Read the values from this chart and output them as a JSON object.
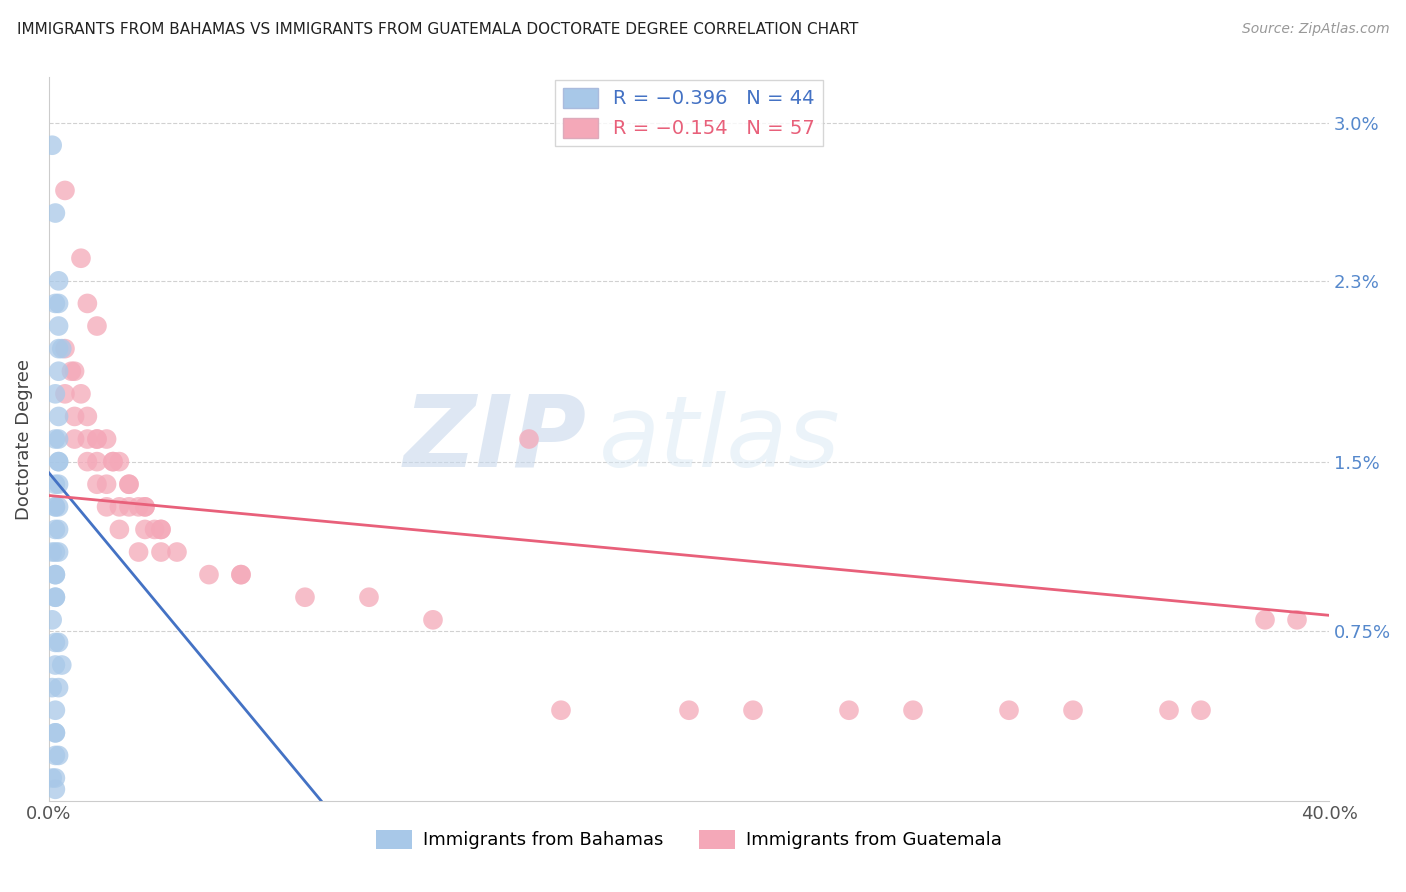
{
  "title": "IMMIGRANTS FROM BAHAMAS VS IMMIGRANTS FROM GUATEMALA DOCTORATE DEGREE CORRELATION CHART",
  "source": "Source: ZipAtlas.com",
  "ylabel": "Doctorate Degree",
  "ytick_labels": [
    "0.75%",
    "1.5%",
    "2.3%",
    "3.0%"
  ],
  "ytick_values": [
    0.0075,
    0.015,
    0.023,
    0.03
  ],
  "xlim": [
    0.0,
    0.4
  ],
  "ylim": [
    0.0,
    0.032
  ],
  "color_blue": "#a8c8e8",
  "color_pink": "#f4a8b8",
  "line_blue": "#4472c4",
  "line_pink": "#e8607a",
  "watermark_zip": "ZIP",
  "watermark_atlas": "atlas",
  "bahamas_x": [
    0.001,
    0.002,
    0.003,
    0.002,
    0.003,
    0.003,
    0.003,
    0.004,
    0.003,
    0.002,
    0.003,
    0.003,
    0.002,
    0.003,
    0.003,
    0.002,
    0.003,
    0.003,
    0.002,
    0.002,
    0.003,
    0.002,
    0.002,
    0.001,
    0.003,
    0.002,
    0.002,
    0.002,
    0.002,
    0.001,
    0.003,
    0.002,
    0.002,
    0.004,
    0.003,
    0.001,
    0.002,
    0.002,
    0.002,
    0.003,
    0.002,
    0.002,
    0.001,
    0.002
  ],
  "bahamas_y": [
    0.029,
    0.026,
    0.023,
    0.022,
    0.022,
    0.021,
    0.02,
    0.02,
    0.019,
    0.018,
    0.017,
    0.016,
    0.016,
    0.015,
    0.015,
    0.014,
    0.014,
    0.013,
    0.013,
    0.013,
    0.012,
    0.012,
    0.011,
    0.011,
    0.011,
    0.01,
    0.01,
    0.009,
    0.009,
    0.008,
    0.007,
    0.007,
    0.006,
    0.006,
    0.005,
    0.005,
    0.004,
    0.003,
    0.003,
    0.002,
    0.002,
    0.001,
    0.001,
    0.0005
  ],
  "guatemala_x": [
    0.005,
    0.01,
    0.012,
    0.015,
    0.005,
    0.007,
    0.008,
    0.01,
    0.012,
    0.015,
    0.018,
    0.02,
    0.022,
    0.025,
    0.028,
    0.03,
    0.033,
    0.035,
    0.005,
    0.008,
    0.012,
    0.015,
    0.018,
    0.022,
    0.025,
    0.03,
    0.035,
    0.008,
    0.012,
    0.015,
    0.018,
    0.022,
    0.028,
    0.015,
    0.02,
    0.025,
    0.03,
    0.035,
    0.04,
    0.05,
    0.06,
    0.08,
    0.1,
    0.12,
    0.15,
    0.2,
    0.25,
    0.3,
    0.35,
    0.38,
    0.16,
    0.22,
    0.27,
    0.32,
    0.36,
    0.39,
    0.06
  ],
  "guatemala_y": [
    0.027,
    0.024,
    0.022,
    0.021,
    0.02,
    0.019,
    0.019,
    0.018,
    0.017,
    0.016,
    0.016,
    0.015,
    0.015,
    0.014,
    0.013,
    0.013,
    0.012,
    0.012,
    0.018,
    0.017,
    0.016,
    0.015,
    0.014,
    0.013,
    0.013,
    0.012,
    0.011,
    0.016,
    0.015,
    0.014,
    0.013,
    0.012,
    0.011,
    0.016,
    0.015,
    0.014,
    0.013,
    0.012,
    0.011,
    0.01,
    0.01,
    0.009,
    0.009,
    0.008,
    0.016,
    0.004,
    0.004,
    0.004,
    0.004,
    0.008,
    0.004,
    0.004,
    0.004,
    0.004,
    0.004,
    0.008,
    0.01
  ],
  "blue_line_x": [
    0.0,
    0.085
  ],
  "blue_line_y": [
    0.0145,
    0.0
  ],
  "pink_line_x": [
    0.0,
    0.4
  ],
  "pink_line_y": [
    0.0135,
    0.0082
  ]
}
